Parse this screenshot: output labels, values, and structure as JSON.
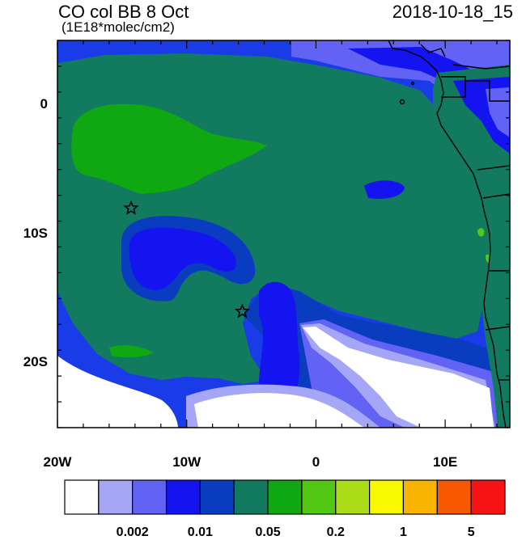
{
  "map": {
    "title": "CO col BB 8 Oct",
    "units": "(1E18*molec/cm2)",
    "valid_time": "2018-10-18_15",
    "lat_labels": [
      {
        "lat": 0,
        "label": "0"
      },
      {
        "lat": -10,
        "label": "10S"
      },
      {
        "lat": -20,
        "label": "20S"
      }
    ],
    "lon_labels": [
      {
        "lon": -20,
        "label": "20W"
      },
      {
        "lon": -10,
        "label": "10W"
      },
      {
        "lon": 0,
        "label": "0"
      },
      {
        "lon": 10,
        "label": "10E"
      }
    ],
    "extent": {
      "lon_min": -20,
      "lon_max": 15,
      "lat_min": -25,
      "lat_max": 5
    },
    "markers": [
      {
        "name": "star-1",
        "lon": -14.3,
        "lat": -8.0,
        "symbol": "star"
      },
      {
        "name": "star-2",
        "lon": -5.7,
        "lat": -16.0,
        "symbol": "star"
      }
    ]
  },
  "colorbar": {
    "colors": [
      "#ffffff",
      "#a6a6f7",
      "#6262f5",
      "#1414f0",
      "#0a3cc0",
      "#127a5e",
      "#10a812",
      "#52c814",
      "#acdc18",
      "#f8f800",
      "#f8b400",
      "#f85800",
      "#f81414"
    ],
    "labels": [
      {
        "after_box": 1,
        "label": "0.002"
      },
      {
        "after_box": 3,
        "label": "0.01"
      },
      {
        "after_box": 5,
        "label": "0.05"
      },
      {
        "after_box": 7,
        "label": "0.2"
      },
      {
        "after_box": 9,
        "label": "1"
      },
      {
        "after_box": 11,
        "label": "5"
      }
    ]
  }
}
